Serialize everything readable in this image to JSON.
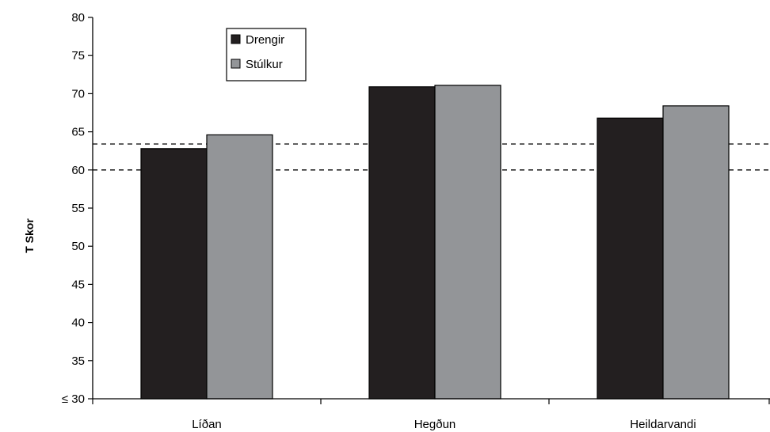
{
  "chart_data": {
    "type": "bar",
    "categories": [
      "Líðan",
      "Hegðun",
      "Heildarvandi"
    ],
    "series": [
      {
        "name": "Drengir",
        "values": [
          62.8,
          70.9,
          66.8
        ],
        "color": "#231f20"
      },
      {
        "name": "Stúlkur",
        "values": [
          64.6,
          71.1,
          68.4
        ],
        "color": "#939598"
      }
    ],
    "ylabel": "T Skor",
    "xlabel": "",
    "ylim": [
      30,
      80
    ],
    "y_ticks": [
      30,
      35,
      40,
      45,
      50,
      55,
      60,
      65,
      70,
      75,
      80
    ],
    "y_tick_labels": [
      "≤ 30",
      "35",
      "40",
      "45",
      "50",
      "55",
      "60",
      "65",
      "70",
      "75",
      "80"
    ],
    "reference_lines": [
      60,
      63.4
    ],
    "reference_line_style": "dashed",
    "legend_position": "top-left",
    "grid": false
  }
}
